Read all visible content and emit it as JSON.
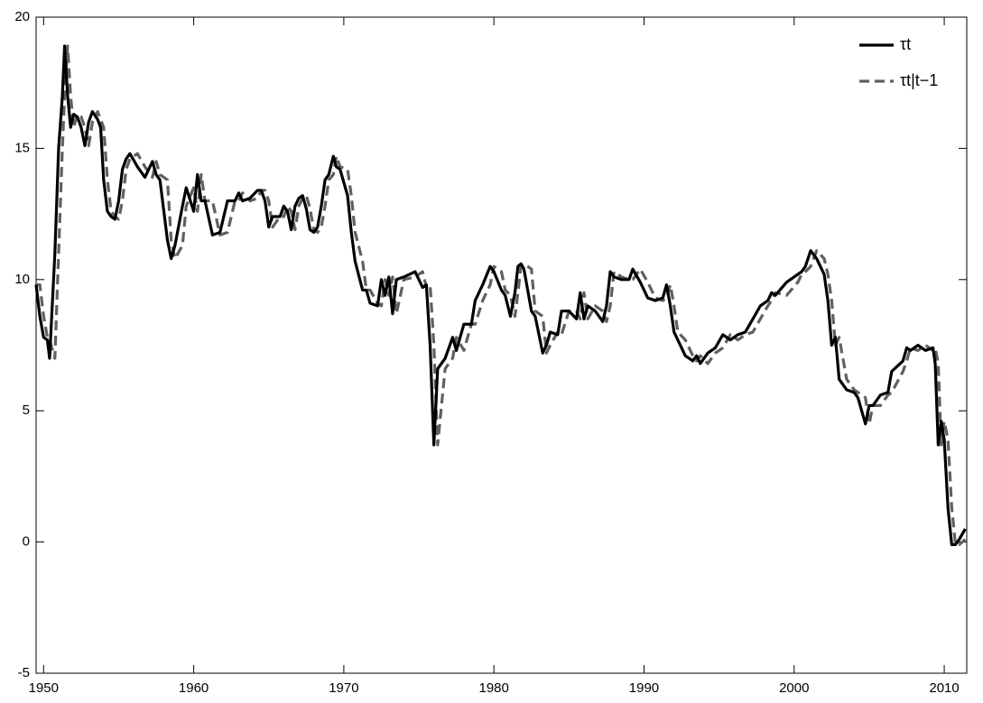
{
  "chart_data": {
    "type": "line",
    "x": [
      1949.5,
      1949.75,
      1950,
      1950.25,
      1950.4,
      1950.75,
      1951,
      1951.25,
      1951.4,
      1951.6,
      1951.8,
      1952,
      1952.25,
      1952.5,
      1952.75,
      1953,
      1953.25,
      1953.6,
      1953.8,
      1954,
      1954.25,
      1954.5,
      1954.75,
      1955,
      1955.25,
      1955.5,
      1955.75,
      1956.25,
      1956.75,
      1957.25,
      1957.5,
      1957.75,
      1958.25,
      1958.5,
      1958.75,
      1959.25,
      1959.5,
      1960,
      1960.25,
      1960.5,
      1960.75,
      1961.25,
      1961.75,
      1962.25,
      1962.75,
      1963,
      1963.25,
      1963.75,
      1964.25,
      1964.5,
      1964.75,
      1965,
      1965.25,
      1965.75,
      1966,
      1966.25,
      1966.5,
      1966.75,
      1967,
      1967.25,
      1967.5,
      1967.75,
      1968,
      1968.25,
      1968.5,
      1968.75,
      1969,
      1969.3,
      1969.5,
      1969.75,
      1970.25,
      1970.5,
      1970.75,
      1971.25,
      1971.5,
      1971.75,
      1972.25,
      1972.5,
      1972.75,
      1973,
      1973.25,
      1973.5,
      1974,
      1974.75,
      1975.25,
      1975.5,
      1975.75,
      1976,
      1976.25,
      1976.75,
      1977.25,
      1977.5,
      1978,
      1978.5,
      1978.75,
      1979.25,
      1979.75,
      1980,
      1980.5,
      1980.75,
      1981.1,
      1981.4,
      1981.6,
      1981.8,
      1982,
      1982.5,
      1982.75,
      1983.25,
      1983.5,
      1983.75,
      1984.25,
      1984.5,
      1985,
      1985.5,
      1985.75,
      1986,
      1986.25,
      1986.75,
      1987.25,
      1987.5,
      1987.75,
      1988,
      1988.5,
      1989,
      1989.25,
      1989.75,
      1990.25,
      1990.75,
      1991.25,
      1991.5,
      1991.75,
      1992,
      1992.25,
      1992.75,
      1993.25,
      1993.5,
      1993.75,
      1994.25,
      1994.75,
      1995.25,
      1995.75,
      1996.25,
      1996.75,
      1997.25,
      1997.75,
      1998.25,
      1998.5,
      1998.75,
      1999.5,
      2000.25,
      2000.5,
      2000.75,
      2001.1,
      2001.5,
      2002,
      2002.25,
      2002.5,
      2002.75,
      2003,
      2003.5,
      2004,
      2004.25,
      2004.75,
      2005,
      2005.25,
      2005.75,
      2006.25,
      2006.5,
      2007.25,
      2007.5,
      2007.75,
      2008.25,
      2008.75,
      2009.25,
      2009.4,
      2009.6,
      2009.8,
      2010,
      2010.25,
      2010.5,
      2010.75,
      2011,
      2011.4
    ],
    "series": [
      {
        "name": "τt",
        "color": "#000000",
        "dash": false,
        "values": [
          9.8,
          8.6,
          7.8,
          7.7,
          7.0,
          11,
          15,
          17,
          18.9,
          17,
          15.8,
          16.3,
          16.2,
          15.8,
          15.1,
          16.0,
          16.4,
          16.1,
          15.8,
          13.8,
          12.6,
          12.4,
          12.3,
          13.0,
          14.2,
          14.6,
          14.8,
          14.3,
          13.9,
          14.5,
          14.0,
          13.8,
          11.5,
          10.8,
          11.3,
          12.8,
          13.5,
          12.6,
          14.0,
          13.0,
          13.0,
          11.7,
          11.8,
          13.0,
          13.0,
          13.3,
          13.0,
          13.1,
          13.4,
          13.4,
          13.0,
          12.0,
          12.4,
          12.4,
          12.8,
          12.6,
          11.9,
          12.8,
          13.1,
          13.2,
          12.7,
          11.9,
          11.8,
          12.0,
          12.8,
          13.8,
          14.0,
          14.7,
          14.3,
          14.2,
          13.2,
          11.8,
          10.7,
          9.6,
          9.6,
          9.1,
          9.0,
          10.0,
          9.4,
          10.1,
          8.7,
          10.0,
          10.1,
          10.3,
          9.7,
          9.8,
          7.5,
          3.7,
          6.6,
          7.0,
          7.8,
          7.3,
          8.3,
          8.3,
          9.2,
          9.8,
          10.5,
          10.3,
          9.6,
          9.4,
          8.6,
          9.5,
          10.5,
          10.6,
          10.4,
          8.8,
          8.6,
          7.2,
          7.5,
          8.0,
          7.9,
          8.8,
          8.8,
          8.5,
          9.5,
          8.5,
          9.0,
          8.8,
          8.4,
          9.0,
          10.3,
          10.1,
          10.0,
          10.0,
          10.4,
          9.9,
          9.3,
          9.2,
          9.3,
          9.8,
          9.0,
          8.0,
          7.7,
          7.1,
          6.9,
          7.1,
          6.8,
          7.2,
          7.4,
          7.9,
          7.7,
          7.9,
          8.0,
          8.5,
          9.0,
          9.2,
          9.5,
          9.4,
          9.9,
          10.2,
          10.3,
          10.5,
          11.1,
          10.8,
          10.2,
          9.2,
          7.5,
          7.8,
          6.2,
          5.8,
          5.7,
          5.5,
          4.5,
          5.2,
          5.2,
          5.6,
          5.7,
          6.5,
          6.9,
          7.4,
          7.3,
          7.5,
          7.3,
          7.4,
          6.8,
          3.7,
          4.6,
          3.9,
          1.3,
          -0.1,
          -0.1,
          0.1,
          0.5
        ]
      },
      {
        "name": "τt|t−1",
        "color": "#606060",
        "dash": true,
        "values": [
          9.8,
          9.8,
          8.6,
          7.8,
          7.7,
          7.0,
          11,
          15,
          17,
          18.9,
          17,
          15.8,
          16.3,
          16.2,
          15.8,
          15.1,
          16.0,
          16.4,
          16.1,
          15.8,
          13.8,
          12.6,
          12.4,
          12.3,
          13.0,
          14.2,
          14.6,
          14.8,
          14.3,
          13.9,
          14.5,
          14.0,
          13.8,
          11.5,
          10.8,
          11.3,
          12.8,
          13.5,
          12.6,
          14.0,
          13.0,
          13.0,
          11.7,
          11.8,
          13.0,
          13.0,
          13.3,
          13.0,
          13.1,
          13.4,
          13.4,
          13.0,
          12.0,
          12.4,
          12.4,
          12.8,
          12.6,
          11.9,
          12.8,
          13.1,
          13.2,
          12.7,
          11.9,
          11.8,
          12.0,
          12.8,
          13.8,
          14.0,
          14.7,
          14.3,
          14.2,
          13.2,
          11.8,
          10.7,
          9.6,
          9.6,
          9.1,
          9.0,
          10.0,
          9.4,
          10.1,
          8.7,
          10.0,
          10.1,
          10.3,
          9.7,
          9.8,
          7.5,
          3.7,
          6.6,
          7.0,
          7.8,
          7.3,
          8.3,
          8.3,
          9.2,
          9.8,
          10.5,
          10.3,
          9.6,
          9.4,
          8.6,
          9.5,
          10.5,
          10.6,
          10.4,
          8.8,
          8.6,
          7.2,
          7.5,
          8.0,
          7.9,
          8.8,
          8.8,
          8.5,
          9.5,
          8.5,
          9.0,
          8.8,
          8.4,
          9.0,
          10.3,
          10.1,
          10.0,
          10.0,
          10.4,
          9.9,
          9.3,
          9.2,
          9.3,
          9.8,
          9.0,
          8.0,
          7.7,
          7.1,
          6.9,
          7.1,
          6.8,
          7.2,
          7.4,
          7.9,
          7.7,
          7.9,
          8.0,
          8.5,
          9.0,
          9.2,
          9.5,
          9.4,
          9.9,
          10.2,
          10.3,
          10.5,
          11.1,
          10.8,
          10.2,
          9.2,
          7.5,
          7.8,
          6.2,
          5.8,
          5.7,
          5.5,
          4.5,
          5.2,
          5.2,
          5.6,
          5.7,
          6.5,
          6.9,
          7.4,
          7.3,
          7.5,
          7.3,
          7.4,
          6.8,
          3.7,
          4.6,
          3.9,
          1.3,
          -0.1,
          -0.1,
          0.1
        ]
      }
    ],
    "xlim": [
      1949.5,
      2011.5
    ],
    "xticks": [
      1950,
      1960,
      1970,
      1980,
      1990,
      2000,
      2010
    ],
    "ylim": [
      -5,
      20
    ],
    "yticks": [
      -5,
      0,
      5,
      10,
      15,
      20
    ],
    "grid": false,
    "legend": "top-right"
  }
}
